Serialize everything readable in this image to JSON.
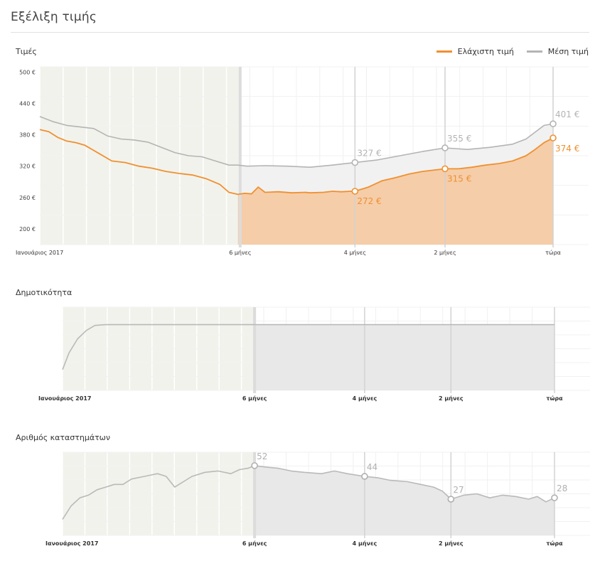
{
  "header": {
    "title": "Εξέλιξη τιμής"
  },
  "colors": {
    "min_price": "#f0902f",
    "avg_price": "#b4b4b4",
    "shaded_past": "#f2f2ec"
  },
  "chart_data": [
    {
      "type": "area",
      "section_title": "Τιμές",
      "legend": [
        {
          "label": "Ελάχιστη τιμή",
          "color": "#f0902f"
        },
        {
          "label": "Μέση τιμή",
          "color": "#b4b4b4"
        }
      ],
      "y_ticks": [
        "500 €",
        "440 €",
        "380 €",
        "320 €",
        "260 €",
        "200 €"
      ],
      "y_tick_values": [
        500,
        440,
        380,
        320,
        260,
        200
      ],
      "x_ticks": [
        "Ιανουάριος 2017",
        "6 μήνες",
        "4 μήνες",
        "2 μήνες",
        "τώρα"
      ],
      "series": [
        {
          "name": "Ελάχιστη τιμή",
          "points": [
            [
              0,
              390
            ],
            [
              0.2,
              386
            ],
            [
              0.4,
              375
            ],
            [
              0.6,
              368
            ],
            [
              0.8,
              365
            ],
            [
              1,
              360
            ],
            [
              1.3,
              345
            ],
            [
              1.6,
              330
            ],
            [
              1.9,
              327
            ],
            [
              2.2,
              320
            ],
            [
              2.5,
              316
            ],
            [
              2.8,
              310
            ],
            [
              3.1,
              306
            ],
            [
              3.4,
              303
            ],
            [
              3.7,
              296
            ],
            [
              4,
              285
            ],
            [
              4.2,
              270
            ],
            [
              4.4,
              266
            ],
            [
              4.55,
              268
            ],
            [
              4.7,
              267
            ],
            [
              4.85,
              280
            ],
            [
              5,
              270
            ],
            [
              5.3,
              271
            ],
            [
              5.6,
              269
            ],
            [
              5.9,
              270
            ],
            [
              6,
              269
            ],
            [
              6.3,
              270
            ],
            [
              6.5,
              272
            ],
            [
              6.7,
              271
            ],
            [
              6.9,
              272
            ],
            [
              7,
              272
            ],
            [
              7.3,
              280
            ],
            [
              7.6,
              292
            ],
            [
              7.9,
              298
            ],
            [
              8.2,
              305
            ],
            [
              8.5,
              310
            ],
            [
              8.8,
              313
            ],
            [
              9,
              315
            ],
            [
              9.3,
              315
            ],
            [
              9.6,
              318
            ],
            [
              9.9,
              322
            ],
            [
              10.2,
              325
            ],
            [
              10.5,
              330
            ],
            [
              10.8,
              340
            ],
            [
              11,
              352
            ],
            [
              11.2,
              365
            ],
            [
              11.4,
              374
            ]
          ],
          "labeled_points": [
            {
              "x": 7,
              "y": 272,
              "label": "272 €"
            },
            {
              "x": 9,
              "y": 315,
              "label": "315 €"
            },
            {
              "x": 11.4,
              "y": 374,
              "label": "374 €"
            }
          ]
        },
        {
          "name": "Μέση τιμή",
          "points": [
            [
              0,
              415
            ],
            [
              0.3,
              405
            ],
            [
              0.6,
              398
            ],
            [
              0.9,
              395
            ],
            [
              1.2,
              392
            ],
            [
              1.5,
              378
            ],
            [
              1.8,
              372
            ],
            [
              2.1,
              370
            ],
            [
              2.4,
              366
            ],
            [
              2.7,
              356
            ],
            [
              3,
              346
            ],
            [
              3.3,
              340
            ],
            [
              3.6,
              338
            ],
            [
              3.9,
              330
            ],
            [
              4.2,
              322
            ],
            [
              4.4,
              322
            ],
            [
              4.6,
              320
            ],
            [
              5,
              321
            ],
            [
              5.5,
              320
            ],
            [
              6,
              318
            ],
            [
              6.5,
              322
            ],
            [
              7,
              327
            ],
            [
              7.5,
              332
            ],
            [
              8,
              340
            ],
            [
              8.5,
              348
            ],
            [
              9,
              355
            ],
            [
              9.5,
              352
            ],
            [
              10,
              356
            ],
            [
              10.5,
              362
            ],
            [
              10.8,
              372
            ],
            [
              11,
              385
            ],
            [
              11.2,
              398
            ],
            [
              11.4,
              401
            ]
          ],
          "labeled_points": [
            {
              "x": 7,
              "y": 327,
              "label": "327 €"
            },
            {
              "x": 9,
              "y": 355,
              "label": "355 €"
            },
            {
              "x": 11.4,
              "y": 401,
              "label": "401 €"
            }
          ]
        }
      ],
      "x_range": [
        0,
        11.4
      ],
      "ylim": [
        170,
        510
      ],
      "shaded_until_x": 4.45,
      "x_tick_positions": [
        0,
        4.45,
        7,
        9,
        11.4
      ]
    },
    {
      "type": "area",
      "section_title": "Δημοτικότητα",
      "x_ticks": [
        "Ιανουάριος 2017",
        "6 μήνες",
        "4 μήνες",
        "2 μήνες",
        "τώρα"
      ],
      "series": [
        {
          "points": [
            [
              0,
              0.25
            ],
            [
              0.15,
              0.45
            ],
            [
              0.35,
              0.62
            ],
            [
              0.55,
              0.72
            ],
            [
              0.75,
              0.78
            ],
            [
              1,
              0.79
            ],
            [
              2,
              0.79
            ],
            [
              4.45,
              0.79
            ],
            [
              7,
              0.79
            ],
            [
              9,
              0.79
            ],
            [
              11.4,
              0.79
            ]
          ]
        }
      ],
      "x_range": [
        0,
        11.4
      ],
      "ylim": [
        0,
        1
      ],
      "shaded_until_x": 4.45,
      "x_tick_positions": [
        0,
        4.45,
        7,
        9,
        11.4
      ]
    },
    {
      "type": "area",
      "section_title": "Αριθμός καταστημάτων",
      "x_ticks": [
        "Ιανουάριος 2017",
        "6 μήνες",
        "4 μήνες",
        "2 μήνες",
        "τώρα"
      ],
      "series": [
        {
          "points": [
            [
              0,
              12
            ],
            [
              0.2,
              22
            ],
            [
              0.4,
              28
            ],
            [
              0.6,
              30
            ],
            [
              0.8,
              34
            ],
            [
              1,
              36
            ],
            [
              1.2,
              38
            ],
            [
              1.4,
              38
            ],
            [
              1.6,
              42
            ],
            [
              1.9,
              44
            ],
            [
              2.2,
              46
            ],
            [
              2.4,
              44
            ],
            [
              2.6,
              36
            ],
            [
              2.8,
              40
            ],
            [
              3,
              44
            ],
            [
              3.3,
              47
            ],
            [
              3.6,
              48
            ],
            [
              3.9,
              46
            ],
            [
              4.1,
              49
            ],
            [
              4.3,
              50
            ],
            [
              4.45,
              52
            ],
            [
              4.7,
              51
            ],
            [
              5,
              50
            ],
            [
              5.3,
              48
            ],
            [
              5.6,
              47
            ],
            [
              6,
              46
            ],
            [
              6.3,
              48
            ],
            [
              6.6,
              46
            ],
            [
              7,
              44
            ],
            [
              7.3,
              43
            ],
            [
              7.6,
              41
            ],
            [
              8,
              40
            ],
            [
              8.3,
              38
            ],
            [
              8.6,
              36
            ],
            [
              8.8,
              33
            ],
            [
              9,
              27
            ],
            [
              9.3,
              30
            ],
            [
              9.6,
              31
            ],
            [
              9.9,
              28
            ],
            [
              10.2,
              30
            ],
            [
              10.5,
              29
            ],
            [
              10.8,
              27
            ],
            [
              11,
              29
            ],
            [
              11.2,
              25
            ],
            [
              11.4,
              28
            ]
          ],
          "labeled_points": [
            {
              "x": 4.45,
              "y": 52,
              "label": "52"
            },
            {
              "x": 7,
              "y": 44,
              "label": "44"
            },
            {
              "x": 9,
              "y": 27,
              "label": "27"
            },
            {
              "x": 11.4,
              "y": 28,
              "label": "28"
            }
          ]
        }
      ],
      "x_range": [
        0,
        11.4
      ],
      "ylim": [
        0,
        62
      ],
      "shaded_until_x": 4.45,
      "x_tick_positions": [
        0,
        4.45,
        7,
        9,
        11.4
      ]
    }
  ]
}
